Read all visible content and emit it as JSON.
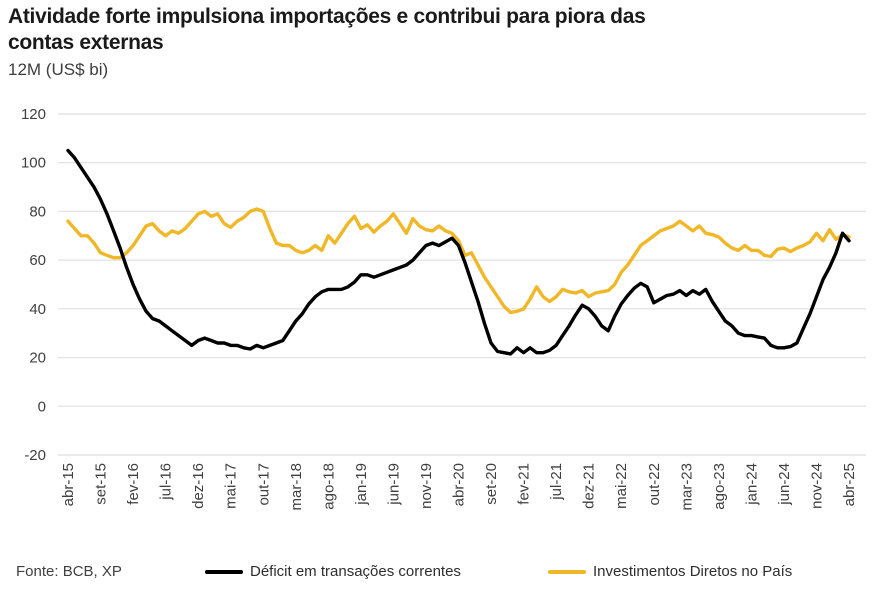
{
  "header": {
    "title": "Atividade forte impulsiona importações e contribui para piora das contas externas",
    "subtitle": "12M (US$ bi)"
  },
  "footer": {
    "source": "Fonte: BCB, XP"
  },
  "legend": [
    {
      "label": "Déficit em transações correntes",
      "color": "#000000"
    },
    {
      "label": "Investimentos Diretos no País",
      "color": "#F0B728"
    }
  ],
  "colors": {
    "grid": "#e4e4e4",
    "axis_text": "#404040",
    "series_deficit": "#000000",
    "series_idp": "#F0B728"
  },
  "chart_data": {
    "type": "line",
    "title": "Atividade forte impulsiona importações e contribui para piora das contas externas",
    "subtitle_unit": "12M (US$ bi)",
    "xlabel": "",
    "ylabel": "12M (US$ bi)",
    "ylim": [
      -20,
      120
    ],
    "yticks": [
      120,
      100,
      80,
      60,
      40,
      20,
      0,
      -20
    ],
    "grid": "horizontal",
    "legend_position": "bottom",
    "x_months_start": "abr-15",
    "x_months_end": "abr-25",
    "n_points": 121,
    "tick_every": 5,
    "tick_labels": [
      "abr-15",
      "set-15",
      "fev-16",
      "jul-16",
      "dez-16",
      "mai-17",
      "out-17",
      "mar-18",
      "ago-18",
      "jan-19",
      "jun-19",
      "nov-19",
      "abr-20",
      "set-20",
      "fev-21",
      "jul-21",
      "dez-21",
      "mai-22",
      "out-22",
      "mar-23",
      "ago-23",
      "jan-24",
      "jun-24",
      "nov-24",
      "abr-25"
    ],
    "series": [
      {
        "name": "Déficit em transações correntes",
        "color": "#000000",
        "values": [
          105,
          102,
          98,
          94,
          90,
          85,
          79,
          72,
          65,
          57,
          50,
          44,
          39,
          36,
          35,
          33,
          31,
          29,
          27,
          25,
          27,
          28,
          27,
          26,
          26,
          25,
          25,
          24,
          23.5,
          25,
          24,
          25,
          26,
          27,
          31,
          35,
          38,
          42,
          45,
          47,
          48,
          48,
          48,
          49,
          51,
          54,
          54,
          53,
          54,
          55,
          56,
          57,
          58,
          60,
          63,
          66,
          67,
          66,
          67.5,
          69,
          66,
          59,
          51,
          43,
          34,
          26,
          22.5,
          22,
          21.5,
          24,
          22,
          24,
          22,
          22,
          23,
          25,
          29,
          33,
          37.5,
          41.5,
          40,
          37,
          33,
          31,
          37,
          42,
          45.5,
          48.5,
          50.5,
          49,
          42.5,
          44,
          45.5,
          46,
          47.5,
          45.5,
          47.5,
          46,
          48,
          43,
          39,
          35,
          33,
          30,
          29,
          29,
          28.5,
          28,
          25,
          24,
          24,
          24.5,
          26,
          32,
          38,
          45,
          52,
          57,
          63,
          71,
          68
        ]
      },
      {
        "name": "Investimentos Diretos no País",
        "color": "#F0B728",
        "values": [
          76,
          73,
          70,
          70,
          67,
          63,
          62,
          61,
          61,
          63,
          66,
          70,
          74,
          75,
          72,
          70,
          72,
          71,
          73,
          76,
          79,
          80,
          78,
          79,
          75,
          73.5,
          76,
          77.5,
          80,
          81,
          80,
          73,
          67,
          66,
          66,
          64,
          63,
          64,
          66,
          64,
          70,
          67,
          71,
          75,
          78,
          73,
          74.5,
          71.5,
          74,
          76,
          79,
          75,
          71,
          77,
          74,
          72.5,
          72,
          74,
          72,
          71,
          68,
          62,
          63,
          58,
          53,
          49,
          45,
          41,
          38.5,
          39,
          40,
          44,
          49,
          45,
          43,
          45,
          48,
          47,
          46.5,
          47.5,
          45,
          46.5,
          47,
          47.5,
          50,
          55,
          58,
          62,
          66,
          68,
          70,
          72,
          73,
          74,
          76,
          74,
          72,
          74,
          71,
          70.5,
          69.5,
          67,
          65,
          64,
          66,
          64,
          64,
          62,
          61.5,
          64.5,
          65,
          63.5,
          65,
          66,
          67.5,
          71,
          68,
          72.5,
          68.5,
          70.5,
          69.5
        ]
      }
    ]
  }
}
